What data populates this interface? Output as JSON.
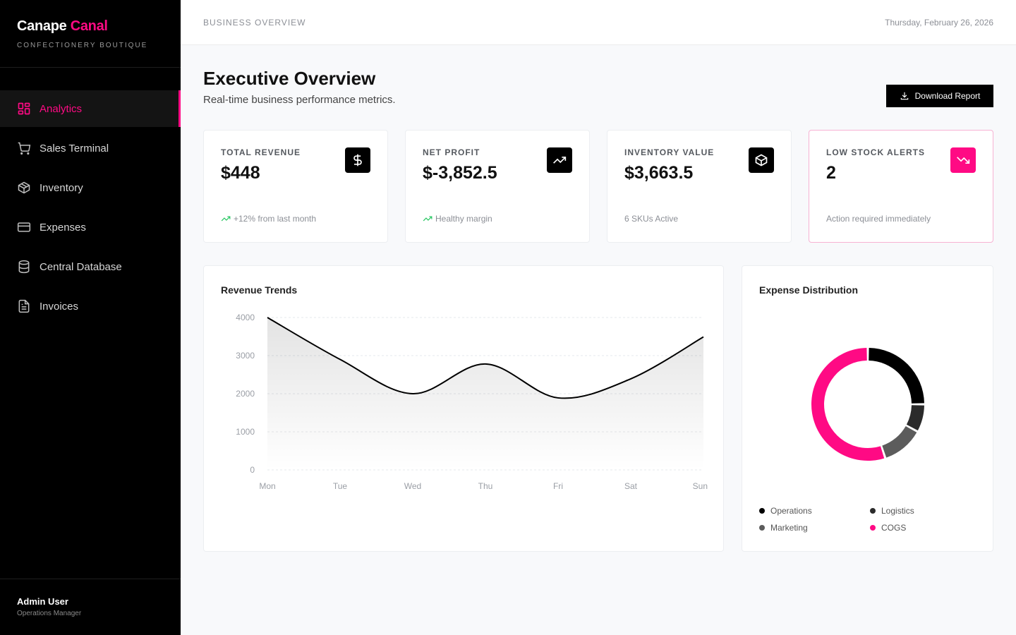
{
  "brand": {
    "name_primary": "Canape",
    "name_accent": "Canal",
    "tagline": "CONFECTIONERY BOUTIQUE"
  },
  "nav": {
    "items": [
      {
        "label": "Analytics",
        "icon": "grid-icon",
        "active": true
      },
      {
        "label": "Sales Terminal",
        "icon": "cart-icon",
        "active": false
      },
      {
        "label": "Inventory",
        "icon": "box-icon",
        "active": false
      },
      {
        "label": "Expenses",
        "icon": "credit-card-icon",
        "active": false
      },
      {
        "label": "Central Database",
        "icon": "database-icon",
        "active": false
      },
      {
        "label": "Invoices",
        "icon": "file-text-icon",
        "active": false
      }
    ]
  },
  "user": {
    "name": "Admin User",
    "role": "Operations Manager"
  },
  "header": {
    "section": "BUSINESS OVERVIEW",
    "date": "Thursday, February 26, 2026"
  },
  "page": {
    "title": "Executive Overview",
    "subtitle": "Real-time business performance metrics.",
    "download_label": "Download Report"
  },
  "stats": [
    {
      "label": "TOTAL REVENUE",
      "value": "$448",
      "foot": "+12% from last month",
      "icon": "dollar-icon",
      "trend": "up"
    },
    {
      "label": "NET PROFIT",
      "value": "$-3,852.5",
      "foot": "Healthy margin",
      "icon": "trending-up-icon",
      "trend": "up"
    },
    {
      "label": "INVENTORY VALUE",
      "value": "$3,663.5",
      "foot": "6 SKUs Active",
      "icon": "package-icon",
      "trend": "none"
    },
    {
      "label": "LOW STOCK ALERTS",
      "value": "2",
      "foot": "Action required immediately",
      "icon": "trending-down-icon",
      "trend": "none"
    }
  ],
  "colors": {
    "accent": "#ff0a84",
    "trend_up": "#22c55e"
  },
  "revenue_chart": {
    "title": "Revenue Trends",
    "chart_data": {
      "type": "area",
      "categories": [
        "Mon",
        "Tue",
        "Wed",
        "Thu",
        "Fri",
        "Sat",
        "Sun"
      ],
      "values": [
        4000,
        2900,
        2000,
        2780,
        1890,
        2390,
        3490
      ],
      "ylim": [
        0,
        4000
      ],
      "yticks": [
        0,
        1000,
        2000,
        3000,
        4000
      ],
      "grid": true
    }
  },
  "expense_chart": {
    "title": "Expense Distribution",
    "chart_data": {
      "type": "pie",
      "categories": [
        "Operations",
        "Logistics",
        "Marketing",
        "COGS"
      ],
      "values": [
        25,
        8,
        12,
        55
      ],
      "colors": [
        "#000000",
        "#2b2b2b",
        "#5c5c5c",
        "#ff0a84"
      ],
      "legend": "bottom"
    }
  }
}
